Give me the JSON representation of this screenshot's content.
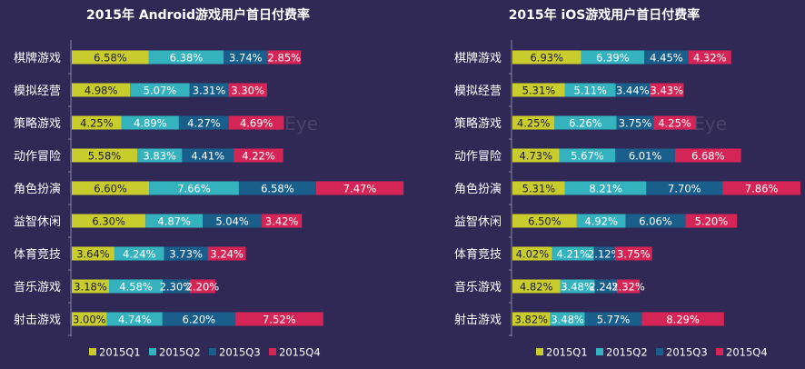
{
  "colors": {
    "background": "#302855",
    "q1": "#c9cc2d",
    "q2": "#34b2bd",
    "q3": "#1a5f8c",
    "q4": "#d42556",
    "axis": "#8a86a6"
  },
  "legend": [
    "2015Q1",
    "2015Q2",
    "2015Q3",
    "2015Q4"
  ],
  "watermark": "DataEye",
  "chart_data": [
    {
      "type": "bar",
      "stacked": true,
      "orientation": "horizontal",
      "title": "2015年 Android游戏用户首日付费率",
      "categories": [
        "棋牌游戏",
        "模拟经营",
        "策略游戏",
        "动作冒险",
        "角色扮演",
        "益智休闲",
        "体育竞技",
        "音乐游戏",
        "射击游戏"
      ],
      "series": [
        {
          "name": "2015Q1",
          "values": [
            6.58,
            4.98,
            4.25,
            5.58,
            6.6,
            6.3,
            3.64,
            3.18,
            3.0
          ],
          "labels": [
            "6.58%",
            "4.98%",
            "4.25%",
            "5.58%",
            "6.60%",
            "6.30%",
            "3.64%",
            "3.18%",
            "3.00%"
          ]
        },
        {
          "name": "2015Q2",
          "values": [
            6.38,
            5.07,
            4.89,
            3.83,
            7.66,
            4.87,
            4.24,
            4.58,
            4.74
          ],
          "labels": [
            "6.38%",
            "5.07%",
            "4.89%",
            "3.83%",
            "7.66%",
            "4.87%",
            "4.24%",
            "4.58%",
            "4.74%"
          ]
        },
        {
          "name": "2015Q3",
          "values": [
            3.74,
            3.31,
            4.27,
            4.41,
            6.58,
            5.04,
            3.73,
            2.3,
            6.2
          ],
          "labels": [
            "3.74%",
            "3.31%",
            "4.27%",
            "4.41%",
            "6.58%",
            "5.04%",
            "3.73%",
            "2.30%",
            "6.20%"
          ]
        },
        {
          "name": "2015Q4",
          "values": [
            2.85,
            3.3,
            4.69,
            4.22,
            7.47,
            3.42,
            3.24,
            2.2,
            7.52
          ],
          "labels": [
            "2.85%",
            "3.30%",
            "4.69%",
            "4.22%",
            "7.47%",
            "3.42%",
            "3.24%",
            "2.20%",
            "7.52%"
          ]
        }
      ],
      "legend_position": "bottom",
      "grid": false
    },
    {
      "type": "bar",
      "stacked": true,
      "orientation": "horizontal",
      "title": "2015年 iOS游戏用户首日付费率",
      "categories": [
        "棋牌游戏",
        "模拟经营",
        "策略游戏",
        "动作冒险",
        "角色扮演",
        "益智休闲",
        "体育竞技",
        "音乐游戏",
        "射击游戏"
      ],
      "series": [
        {
          "name": "2015Q1",
          "values": [
            6.93,
            5.31,
            4.25,
            4.73,
            5.31,
            6.5,
            4.02,
            4.82,
            3.82
          ],
          "labels": [
            "6.93%",
            "5.31%",
            "4.25%",
            "4.73%",
            "5.31%",
            "6.50%",
            "4.02%",
            "4.82%",
            "3.82%"
          ]
        },
        {
          "name": "2015Q2",
          "values": [
            6.39,
            5.11,
            6.26,
            5.67,
            8.21,
            4.92,
            4.21,
            3.48,
            3.48
          ],
          "labels": [
            "6.39%",
            "5.11%",
            "6.26%",
            "5.67%",
            "8.21%",
            "4.92%",
            "4.21%",
            "3.48%",
            "3.48%"
          ]
        },
        {
          "name": "2015Q3",
          "values": [
            4.45,
            3.44,
            3.75,
            6.01,
            7.7,
            6.06,
            2.12,
            2.24,
            5.77
          ],
          "labels": [
            "4.45%",
            "3.44%",
            "3.75%",
            "6.01%",
            "7.70%",
            "6.06%",
            "2.12%",
            "2.24%",
            "5.77%"
          ]
        },
        {
          "name": "2015Q4",
          "values": [
            4.32,
            3.43,
            4.25,
            6.68,
            7.86,
            5.2,
            3.75,
            2.32,
            8.29
          ],
          "labels": [
            "4.32%",
            "3.43%",
            "4.25%",
            "6.68%",
            "7.86%",
            "5.20%",
            "3.75%",
            "2.32%",
            "8.29%"
          ]
        }
      ],
      "legend_position": "bottom",
      "grid": false
    }
  ]
}
